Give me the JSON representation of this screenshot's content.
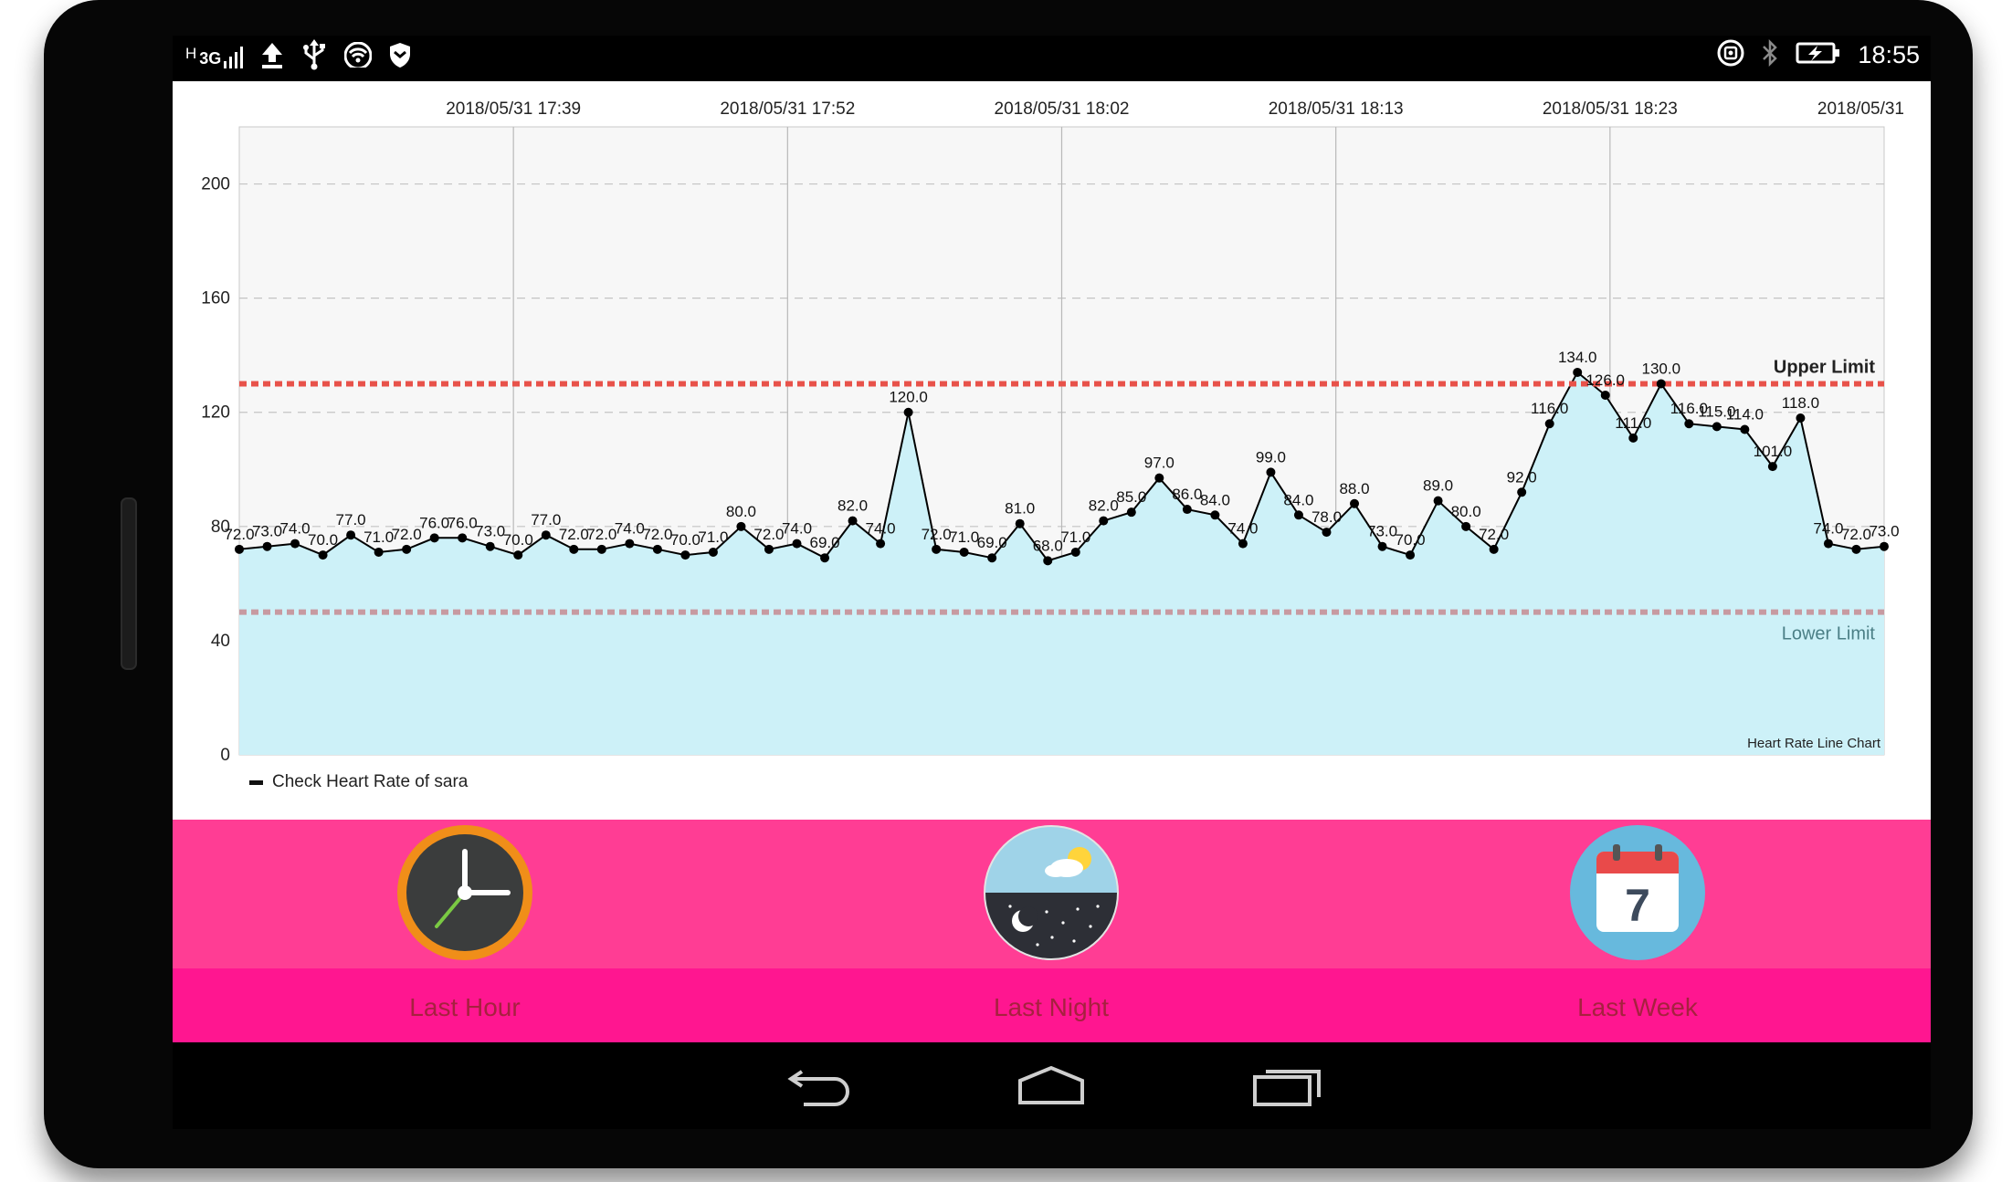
{
  "status_bar": {
    "network": "3G",
    "network_prefix": "H",
    "time": "18:55",
    "left_icons": [
      "signal-icon",
      "upload-icon",
      "usb-icon",
      "wifi-icon",
      "shield-icon"
    ],
    "right_icons": [
      "nfc-icon",
      "bluetooth-icon",
      "battery-icon"
    ]
  },
  "chart_data": {
    "type": "area",
    "title": "",
    "corner_label": "Heart Rate Line Chart",
    "x_tick_labels": [
      "2018/05/31 17:39",
      "2018/05/31 17:52",
      "2018/05/31 18:02",
      "2018/05/31 18:13",
      "2018/05/31 18:23",
      "2018/05/31"
    ],
    "y_ticks": [
      0,
      40,
      80,
      120,
      160,
      200
    ],
    "ylim": [
      0,
      220
    ],
    "grid": true,
    "series": [
      {
        "name": "Check Heart Rate of sara",
        "values": [
          72.0,
          73.0,
          74.0,
          70.0,
          77.0,
          71.0,
          72.0,
          76.0,
          76.0,
          73.0,
          70.0,
          77.0,
          72.0,
          72.0,
          74.0,
          72.0,
          70.0,
          71.0,
          80.0,
          72.0,
          74.0,
          69.0,
          82.0,
          74.0,
          120.0,
          72.0,
          71.0,
          69.0,
          81.0,
          68.0,
          71.0,
          82.0,
          85.0,
          97.0,
          86.0,
          84.0,
          74.0,
          99.0,
          84.0,
          78.0,
          88.0,
          73.0,
          70.0,
          89.0,
          80.0,
          72.0,
          92.0,
          116.0,
          134.0,
          126.0,
          111.0,
          130.0,
          116.0,
          115.0,
          114.0,
          101.0,
          118.0,
          74.0,
          72.0,
          73.0
        ]
      }
    ],
    "reference_lines": [
      {
        "label": "Upper Limit",
        "value": 130,
        "color": "#e8524a"
      },
      {
        "label": "Lower Limit",
        "value": 50,
        "color": "#c79aa1"
      }
    ],
    "colors": {
      "fill": "#cdf1f8",
      "line": "#000000",
      "plot_bg": "#f7f7f7",
      "label_color_upper": "#222222",
      "label_color_lower": "#4b7f86"
    },
    "legend_position": "bottom-left"
  },
  "bottom_nav": {
    "items": [
      {
        "label": "Last Hour",
        "icon": "clock-icon"
      },
      {
        "label": "Last Night",
        "icon": "night-icon"
      },
      {
        "label": "Last Week",
        "icon": "calendar-icon",
        "calendar_day": "7"
      }
    ],
    "colors": {
      "top": "#ff3d94",
      "bottom": "#ff1690",
      "label": "#a6213f"
    }
  },
  "system_nav": {
    "icons": [
      "back-icon",
      "home-icon",
      "recents-icon"
    ]
  }
}
